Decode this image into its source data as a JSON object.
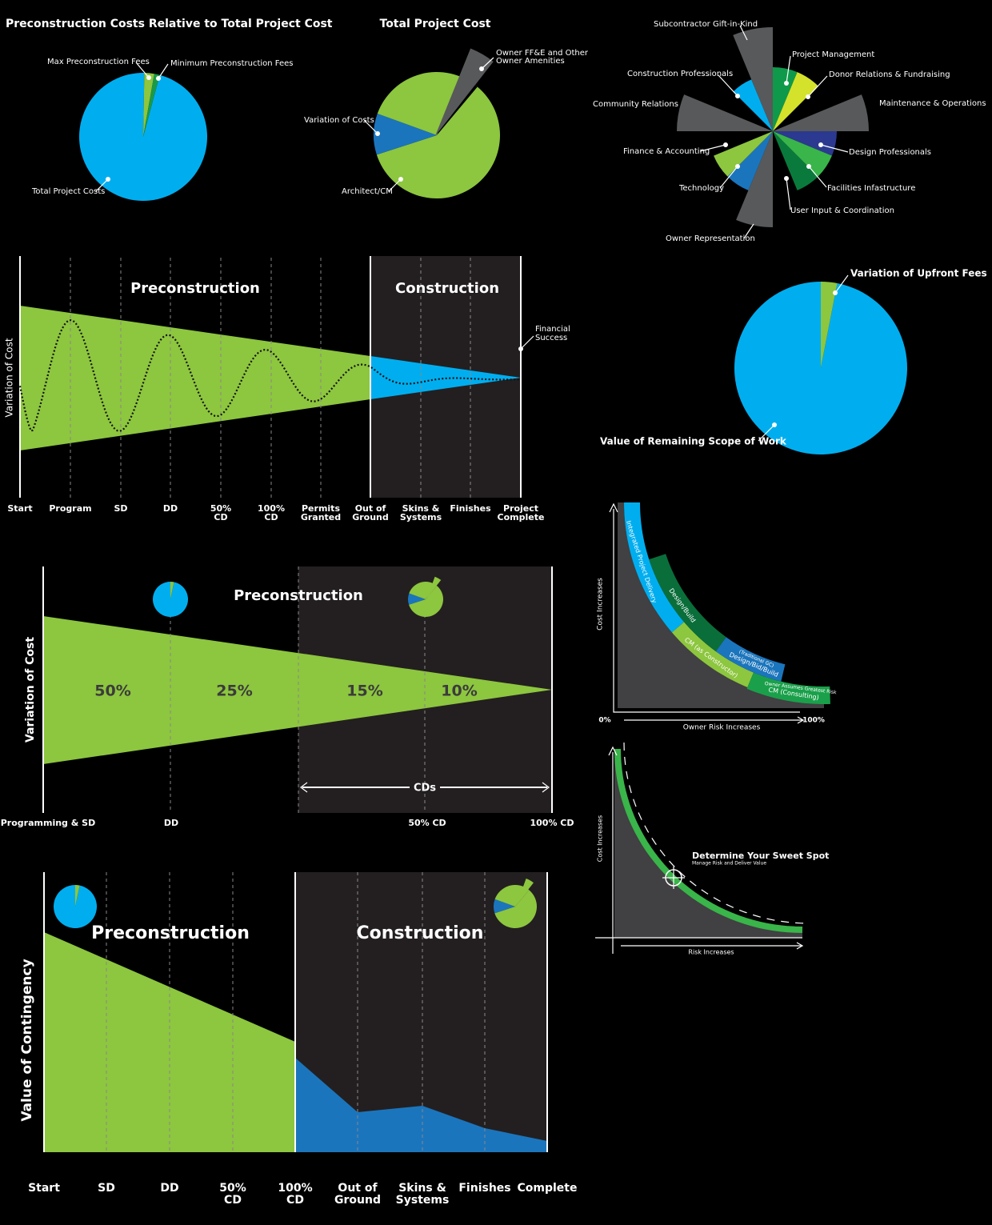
{
  "pie_preconstruction": {
    "title": "Preconstruction Costs Relative to Total Project Cost",
    "labels": [
      "Max Preconstruction Fees",
      "Minimum Preconstruction Fees",
      "Total Project Costs"
    ]
  },
  "pie_total": {
    "title": "Total Project Cost",
    "labels": [
      "Owner FF&E and Other",
      "Owner Amenities",
      "Variation of Costs",
      "Architect/CM"
    ]
  },
  "polar": {
    "labels": [
      "Subcontractor Gift-in-Kind",
      "Project Management",
      "Donor Relations & Fundraising",
      "Construction Professionals",
      "Community Relations",
      "Maintenance & Operations",
      "Finance & Accounting",
      "Design Professionals",
      "Technology",
      "Facilities Infastructure",
      "User Input & Coordination",
      "Owner Representation"
    ]
  },
  "timeline1": {
    "axis_label": "Variation of Cost",
    "phases": [
      "Preconstruction",
      "Construction"
    ],
    "annotation": [
      "Financial",
      "Success"
    ],
    "milestones": [
      [
        "Start"
      ],
      [
        "Program"
      ],
      [
        "SD"
      ],
      [
        "DD"
      ],
      [
        "50%",
        "CD"
      ],
      [
        "100%",
        "CD"
      ],
      [
        "Permits",
        "Granted"
      ],
      [
        "Out of",
        "Ground"
      ],
      [
        "Skins &",
        "Systems"
      ],
      [
        "Finishes"
      ],
      [
        "Project",
        "Complete"
      ]
    ]
  },
  "pie_upfront": {
    "labels": [
      "Variation of Upfront Fees",
      "Value of Remaining Scope of Work"
    ]
  },
  "timeline2": {
    "axis_label": "Variation of Cost",
    "phase": "Preconstruction",
    "percentages": [
      "50%",
      "25%",
      "15%",
      "10%"
    ],
    "span": "CDs",
    "milestones": [
      "Programming & SD",
      "DD",
      "50% CD",
      "100% CD"
    ]
  },
  "delivery_curve": {
    "y_axis": "Cost Increases",
    "x_axis": "Owner Risk Increases",
    "x_start": "0%",
    "x_end": "100%",
    "methods": [
      "Integrated Project Delivery",
      "Design/Build",
      "CM (as Constructor)",
      "Design/Bid/Build",
      "(Traditional GC)",
      "CM (Consulting)",
      "Owner Assumes Greatest Risk"
    ]
  },
  "sweet_spot": {
    "y_axis": "Cost Increases",
    "x_axis": "Risk Increases",
    "title": "Determine Your Sweet Spot",
    "subtitle": "Manage Risk and Deliver Value"
  },
  "timeline3": {
    "axis_label": "Value of Contingency",
    "phases": [
      "Preconstruction",
      "Construction"
    ],
    "milestones": [
      [
        "Start"
      ],
      [
        "SD"
      ],
      [
        "DD"
      ],
      [
        "50%",
        "CD"
      ],
      [
        "100%",
        "CD"
      ],
      [
        "Out of",
        "Ground"
      ],
      [
        "Skins &",
        "Systems"
      ],
      [
        "Finishes"
      ],
      [
        "Complete"
      ]
    ]
  }
}
